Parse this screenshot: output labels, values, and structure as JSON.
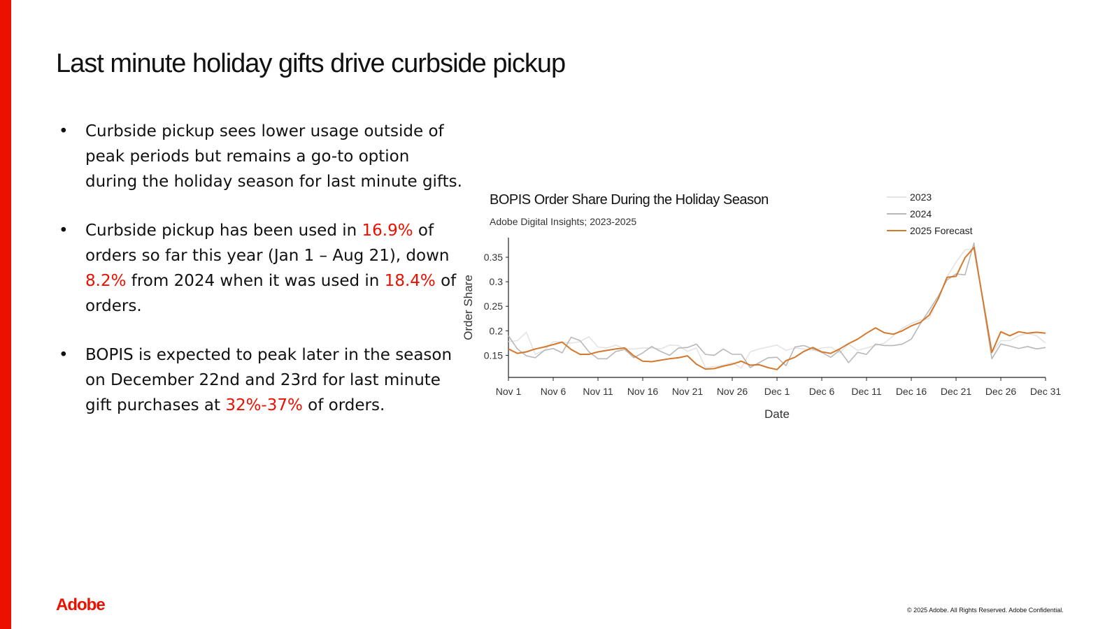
{
  "slide": {
    "title": "Last minute holiday gifts drive curbside pickup",
    "bullets": [
      {
        "parts": [
          {
            "t": "Curbside pickup sees lower usage outside of peak periods but remains a go-to option during the holiday season for last minute gifts."
          }
        ]
      },
      {
        "parts": [
          {
            "t": "Curbside pickup has been used in "
          },
          {
            "t": "16.9%",
            "hl": true
          },
          {
            "t": " of orders so far this year (Jan 1 – Aug 21), down "
          },
          {
            "t": "8.2%",
            "hl": true
          },
          {
            "t": " from 2024 when it was used in "
          },
          {
            "t": "18.4%",
            "hl": true
          },
          {
            "t": " of orders."
          }
        ]
      },
      {
        "parts": [
          {
            "t": "BOPIS is expected to peak later in the season on December 22nd and 23rd for last minute gift purchases at "
          },
          {
            "t": "32%-37%",
            "hl": true
          },
          {
            "t": " of orders."
          }
        ]
      }
    ],
    "logo": "Adobe",
    "footer": "© 2025 Adobe. All Rights Reserved. Adobe Confidential.",
    "accent_color": "#eb1000"
  },
  "chart_data": {
    "type": "line",
    "title": "BOPIS Order Share During the Holiday Season",
    "subtitle": "Adobe Digital Insights; 2023-2025",
    "xlabel": "Date",
    "ylabel": "Order Share",
    "ylim": [
      0.105,
      0.39
    ],
    "yticks": [
      0.15,
      0.2,
      0.25,
      0.3,
      0.35
    ],
    "ytick_labels": [
      "0.15",
      "0.2",
      "0.25",
      "0.3",
      "0.35"
    ],
    "x_days": 61,
    "xtick_index": [
      0,
      5,
      10,
      15,
      20,
      25,
      30,
      35,
      40,
      45,
      50,
      55,
      60
    ],
    "xtick_labels": [
      "Nov 1",
      "Nov 6",
      "Nov 11",
      "Nov 16",
      "Nov 21",
      "Nov 26",
      "Dec 1",
      "Dec 6",
      "Dec 11",
      "Dec 16",
      "Dec 21",
      "Dec 26",
      "Dec 31"
    ],
    "legend_position": "top-right",
    "series": [
      {
        "name": "2023",
        "color": "#e3e3e3",
        "values": [
          0.178,
          0.18,
          0.197,
          0.152,
          0.16,
          0.178,
          0.177,
          0.175,
          0.178,
          0.188,
          0.167,
          0.165,
          0.171,
          0.163,
          0.163,
          0.165,
          0.165,
          0.163,
          0.171,
          0.17,
          0.158,
          0.165,
          0.125,
          0.127,
          0.13,
          0.135,
          0.124,
          0.157,
          0.163,
          0.167,
          0.171,
          0.16,
          0.165,
          0.163,
          0.16,
          0.165,
          0.167,
          0.155,
          0.173,
          0.16,
          0.165,
          0.17,
          0.175,
          0.19,
          0.205,
          0.215,
          0.222,
          0.225,
          0.265,
          0.31,
          0.34,
          0.365,
          0.367,
          0.26,
          0.155,
          0.18,
          0.18,
          0.19,
          0.195,
          0.19,
          0.175
        ]
      },
      {
        "name": "2024",
        "color": "#b8b8b8",
        "values": [
          0.19,
          0.163,
          0.149,
          0.145,
          0.16,
          0.164,
          0.155,
          0.187,
          0.18,
          0.157,
          0.143,
          0.143,
          0.158,
          0.162,
          0.145,
          0.155,
          0.168,
          0.158,
          0.15,
          0.165,
          0.166,
          0.173,
          0.152,
          0.15,
          0.163,
          0.152,
          0.152,
          0.125,
          0.135,
          0.145,
          0.146,
          0.129,
          0.167,
          0.17,
          0.163,
          0.156,
          0.146,
          0.16,
          0.135,
          0.156,
          0.152,
          0.173,
          0.17,
          0.17,
          0.173,
          0.183,
          0.214,
          0.242,
          0.27,
          0.304,
          0.316,
          0.314,
          0.379,
          0.26,
          0.143,
          0.173,
          0.169,
          0.164,
          0.168,
          0.163,
          0.166
        ]
      },
      {
        "name": "2025 Forecast",
        "color": "#d4782c",
        "values": [
          0.163,
          0.154,
          0.157,
          0.163,
          0.167,
          0.172,
          0.177,
          0.162,
          0.152,
          0.152,
          0.157,
          0.16,
          0.163,
          0.165,
          0.149,
          0.138,
          0.137,
          0.14,
          0.143,
          0.145,
          0.149,
          0.132,
          0.122,
          0.123,
          0.128,
          0.132,
          0.138,
          0.13,
          0.131,
          0.125,
          0.121,
          0.139,
          0.146,
          0.158,
          0.166,
          0.157,
          0.154,
          0.163,
          0.174,
          0.183,
          0.195,
          0.206,
          0.196,
          0.193,
          0.2,
          0.21,
          0.217,
          0.232,
          0.265,
          0.309,
          0.311,
          0.349,
          0.37,
          0.263,
          0.156,
          0.198,
          0.19,
          0.198,
          0.195,
          0.197,
          0.195
        ]
      }
    ]
  }
}
